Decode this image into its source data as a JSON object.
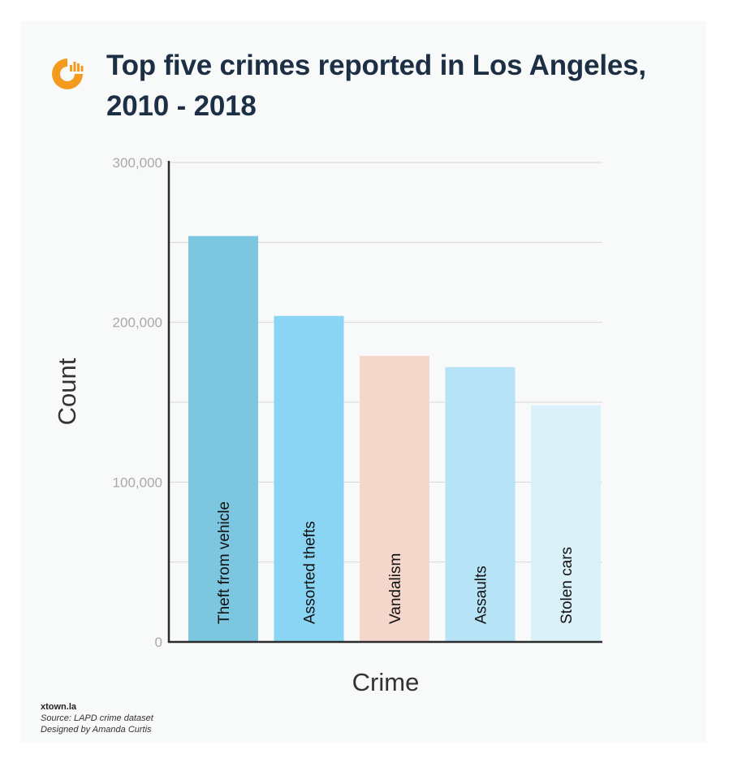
{
  "header": {
    "title": "Top five crimes reported in Los Angeles, 2010 - 2018",
    "logo_icon": "xtown-logo-icon"
  },
  "colors": {
    "background": "#f8f9f9",
    "title": "#1d2f44",
    "logo": "#f39a1f",
    "axis": "#2b2b2b",
    "grid": "#d7d7d7",
    "tick": "#a9a9a9"
  },
  "chart_data": {
    "type": "bar",
    "title": "Top five crimes reported in Los Angeles, 2010 - 2018",
    "xlabel": "Crime",
    "ylabel": "Count",
    "categories": [
      "Theft from vehicle",
      "Assorted thefts",
      "Vandalism",
      "Assaults",
      "Stolen cars"
    ],
    "values": [
      254000,
      204000,
      179000,
      172000,
      148000
    ],
    "bar_colors": [
      "#7cc6e0",
      "#8ad5f3",
      "#f5d6ca",
      "#b6e3f6",
      "#daf1fa"
    ],
    "ylim": [
      0,
      300000
    ],
    "yticks": [
      {
        "value": 0,
        "label": "0"
      },
      {
        "value": 100000,
        "label": "100,000"
      },
      {
        "value": 200000,
        "label": "200,000"
      },
      {
        "value": 300000,
        "label": "300,000"
      }
    ],
    "gridlines": [
      50000,
      100000,
      150000,
      200000,
      250000,
      300000
    ],
    "grid": true,
    "legend": "none",
    "labels_inside_bars": true
  },
  "footer": {
    "brand": "xtown.la",
    "source": "Source: LAPD crime dataset",
    "credit": "Designed by Amanda Curtis"
  }
}
